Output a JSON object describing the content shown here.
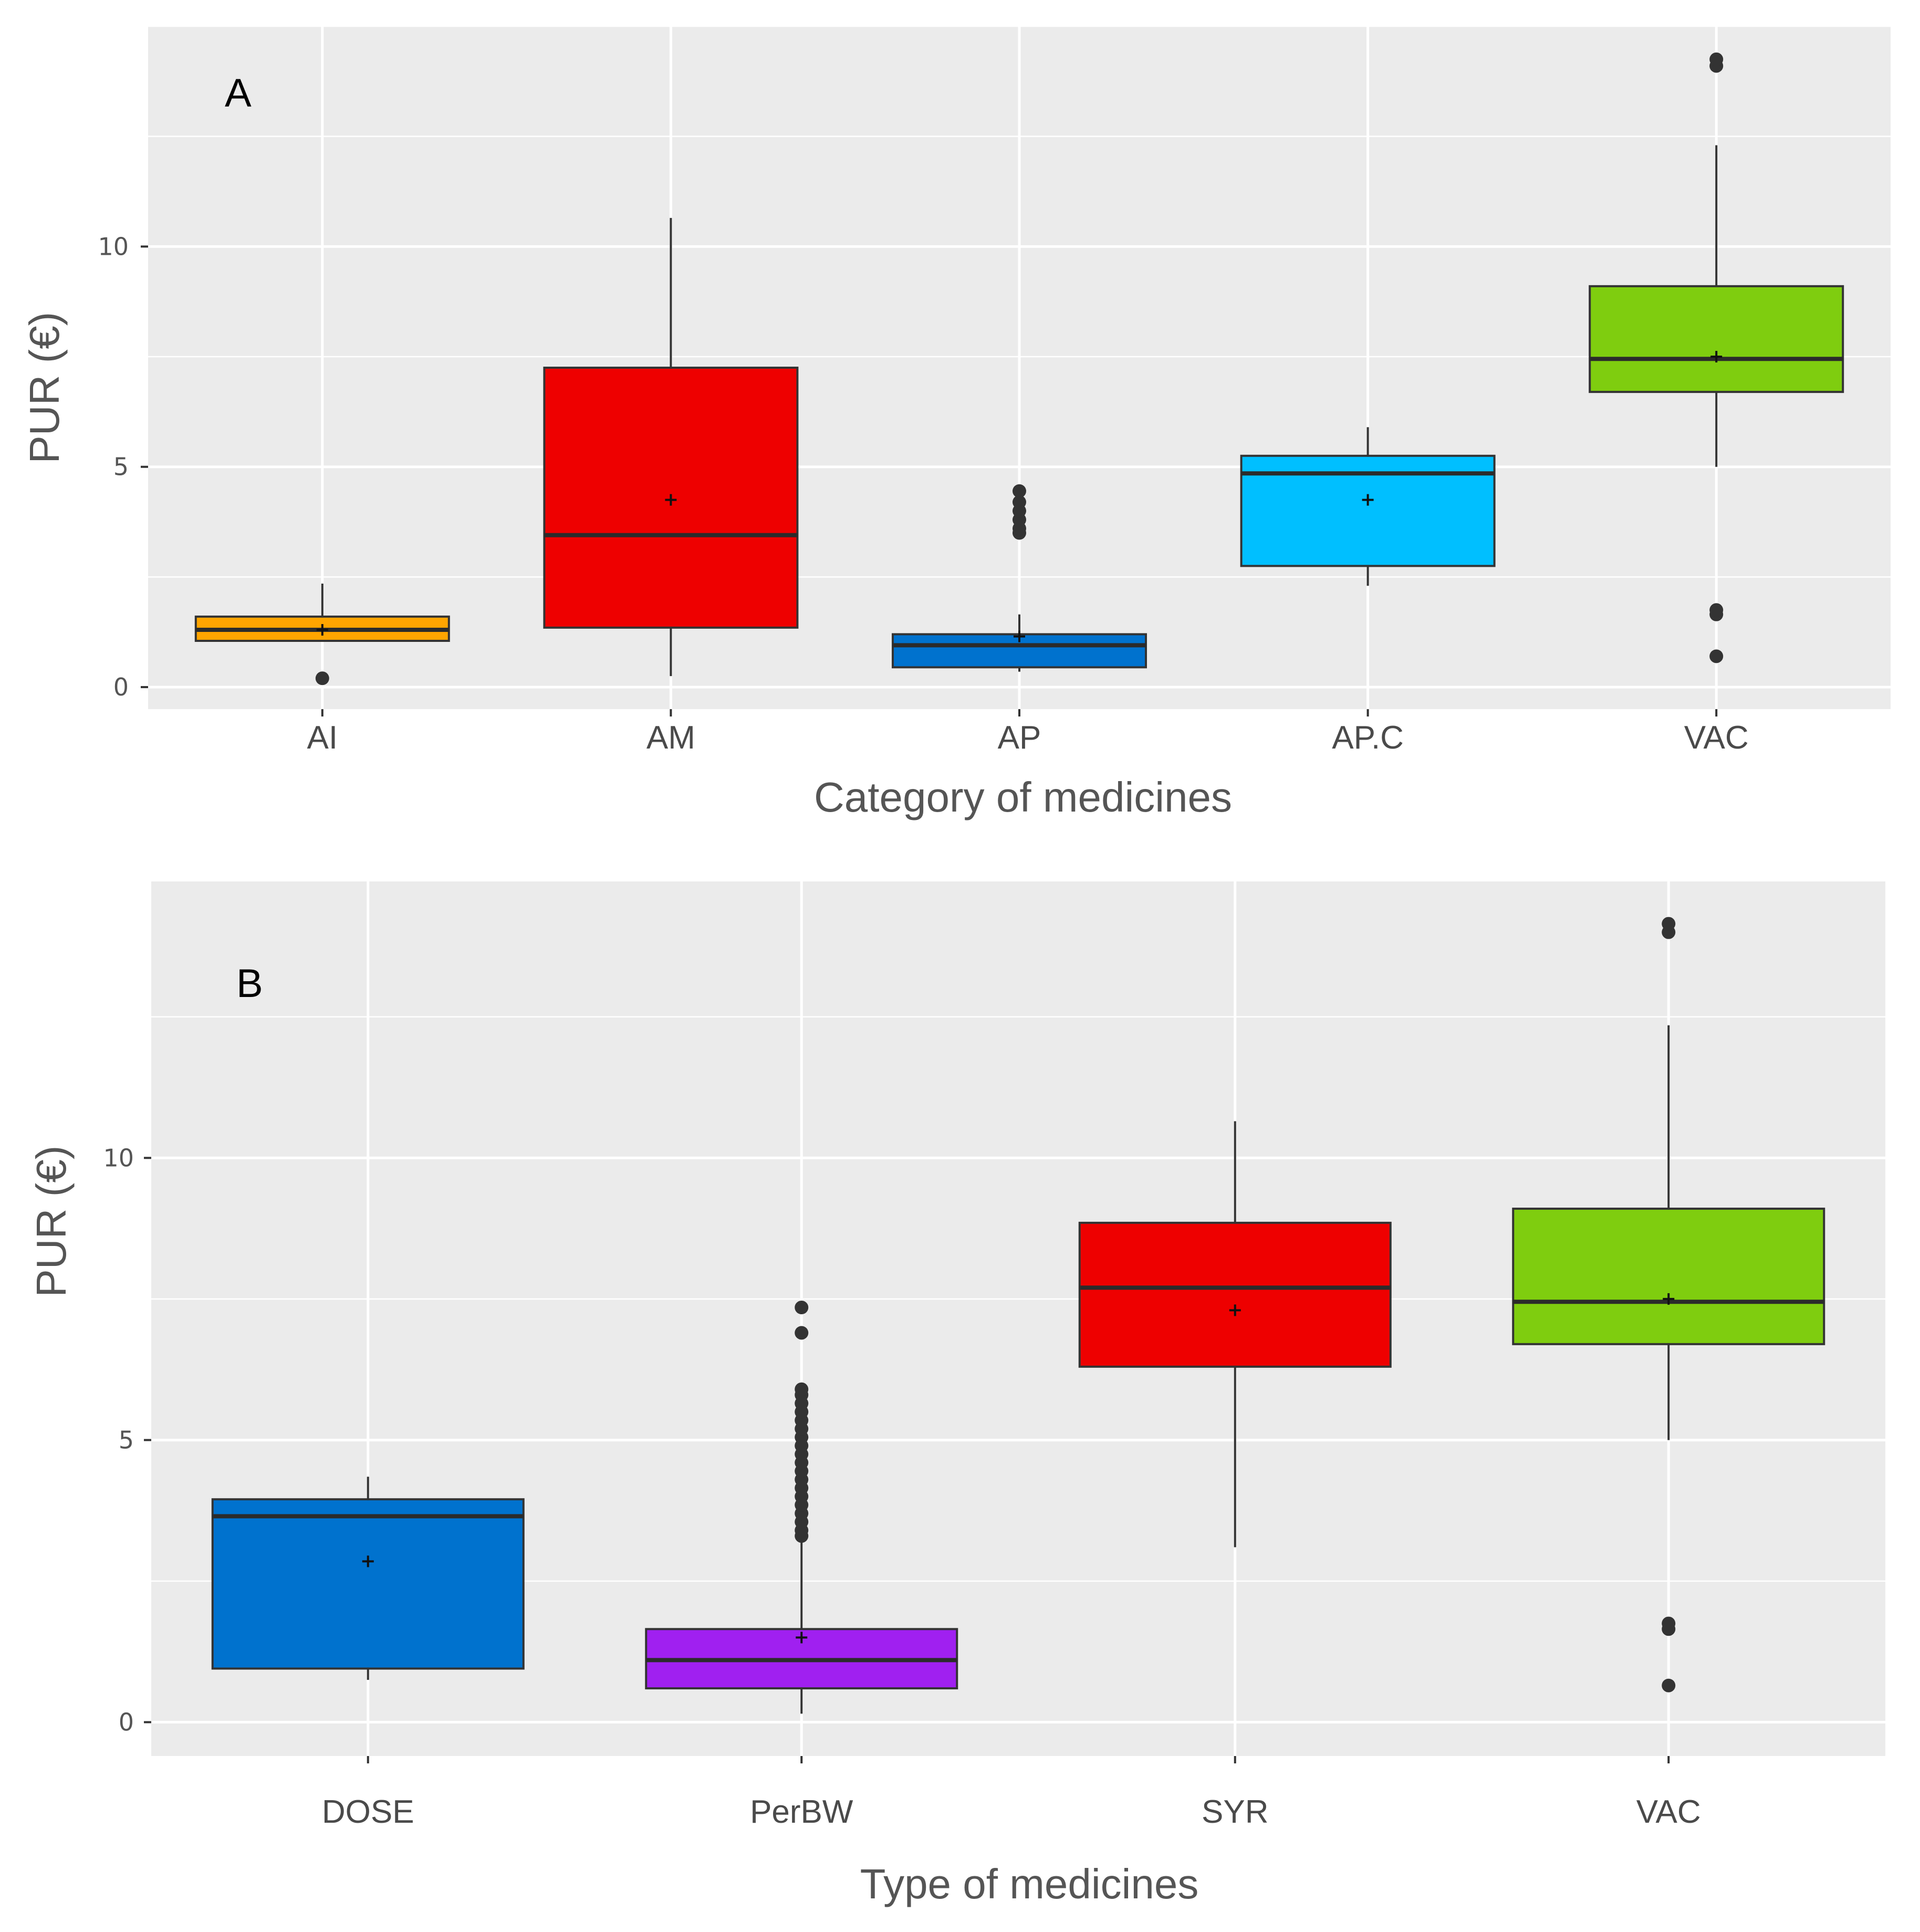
{
  "chart_data": [
    {
      "type": "boxplot",
      "panel_label": "A",
      "xlabel": "Category of medicines",
      "ylabel": "PUR (€)",
      "ylim": [
        -0.5,
        15
      ],
      "yticks": [
        0,
        5,
        10
      ],
      "grid": true,
      "categories": [
        "AI",
        "AM",
        "AP",
        "AP.C",
        "VAC"
      ],
      "colors": [
        "#FFA500",
        "#EE0000",
        "#0072CE",
        "#00BFFF",
        "#7FCD0F"
      ],
      "boxes": [
        {
          "q1": 1.05,
          "median": 1.3,
          "q3": 1.6,
          "whisker_low": 1.05,
          "whisker_high": 2.35,
          "mean": 1.3,
          "outliers": [
            0.2
          ]
        },
        {
          "q1": 1.35,
          "median": 3.45,
          "q3": 7.25,
          "whisker_low": 0.25,
          "whisker_high": 10.65,
          "mean": 4.25,
          "outliers": []
        },
        {
          "q1": 0.45,
          "median": 0.95,
          "q3": 1.2,
          "whisker_low": 0.35,
          "whisker_high": 1.65,
          "mean": 1.15,
          "outliers": [
            3.5,
            3.6,
            3.8,
            4.0,
            4.2,
            4.45
          ]
        },
        {
          "q1": 2.75,
          "median": 4.85,
          "q3": 5.25,
          "whisker_low": 2.3,
          "whisker_high": 5.9,
          "mean": 4.25,
          "outliers": []
        },
        {
          "q1": 6.7,
          "median": 7.45,
          "q3": 9.1,
          "whisker_low": 5.0,
          "whisker_high": 12.3,
          "mean": 7.5,
          "outliers": [
            0.7,
            1.65,
            1.75,
            14.1,
            14.25
          ]
        }
      ]
    },
    {
      "type": "boxplot",
      "panel_label": "B",
      "xlabel": "Type of medicines",
      "ylabel": "PUR (€)",
      "ylim": [
        -0.6,
        14.9
      ],
      "yticks": [
        0,
        5,
        10
      ],
      "grid": true,
      "categories": [
        "DOSE",
        "PerBW",
        "SYR",
        "VAC"
      ],
      "colors": [
        "#0072CE",
        "#A020F0",
        "#EE0000",
        "#7FCD0F"
      ],
      "boxes": [
        {
          "q1": 0.95,
          "median": 3.65,
          "q3": 3.95,
          "whisker_low": 0.75,
          "whisker_high": 4.35,
          "mean": 2.85,
          "outliers": []
        },
        {
          "q1": 0.6,
          "median": 1.1,
          "q3": 1.65,
          "whisker_low": 0.15,
          "whisker_high": 3.2,
          "mean": 1.5,
          "outliers": [
            3.3,
            3.4,
            3.55,
            3.7,
            3.85,
            4.0,
            4.15,
            4.3,
            4.45,
            4.6,
            4.75,
            4.9,
            5.05,
            5.2,
            5.35,
            5.5,
            5.65,
            5.8,
            5.9,
            6.9,
            7.35
          ]
        },
        {
          "q1": 6.3,
          "median": 7.7,
          "q3": 8.85,
          "whisker_low": 3.1,
          "whisker_high": 10.65,
          "mean": 7.3,
          "outliers": []
        },
        {
          "q1": 6.7,
          "median": 7.45,
          "q3": 9.1,
          "whisker_low": 5.0,
          "whisker_high": 12.35,
          "mean": 7.5,
          "outliers": [
            0.65,
            1.65,
            1.75,
            14.0,
            14.15
          ]
        }
      ]
    }
  ]
}
